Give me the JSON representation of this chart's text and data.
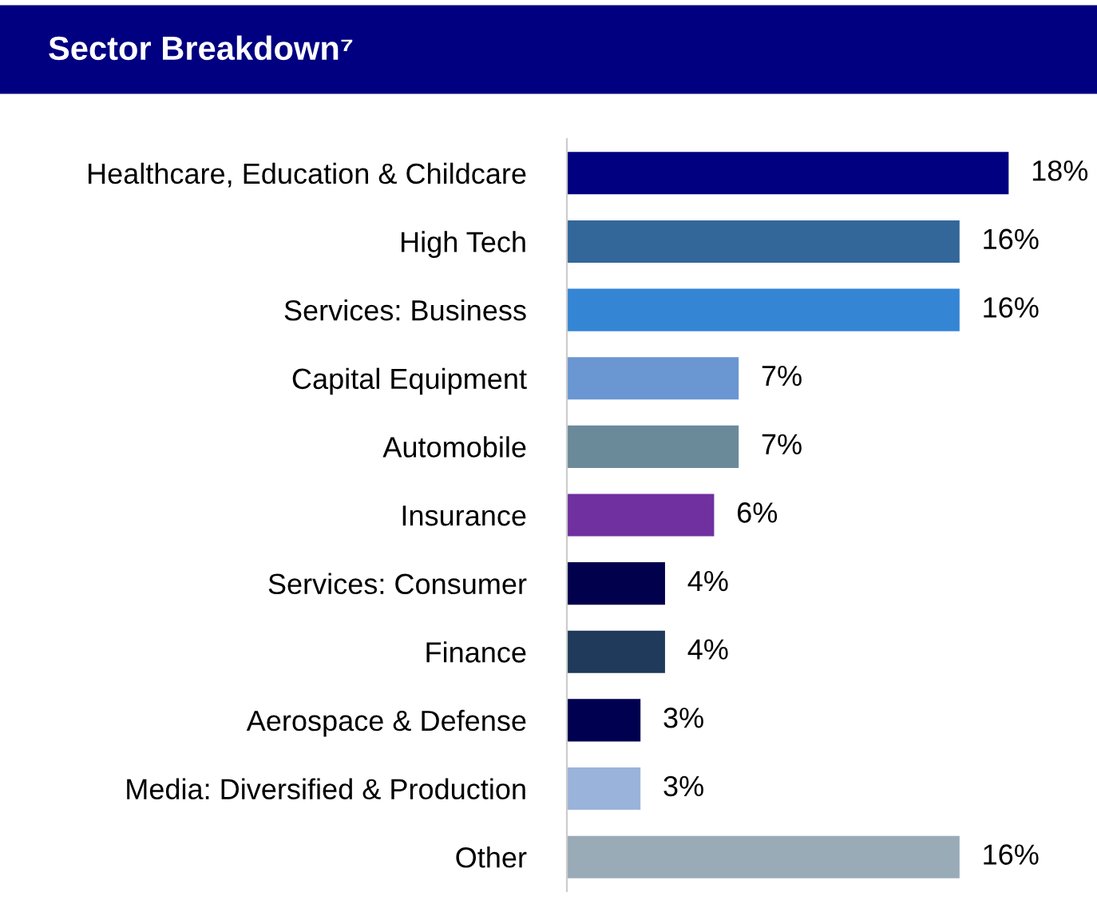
{
  "chart_data": {
    "type": "bar",
    "orientation": "horizontal",
    "title": "Sector Breakdown⁷",
    "categories": [
      "Healthcare, Education & Childcare",
      "High Tech",
      "Services: Business",
      "Capital Equipment",
      "Automobile",
      "Insurance",
      "Services: Consumer",
      "Finance",
      "Aerospace & Defense",
      "Media: Diversified & Production",
      "Other"
    ],
    "values": [
      18,
      16,
      16,
      7,
      7,
      6,
      4,
      4,
      3,
      3,
      16
    ],
    "value_labels": [
      "18%",
      "16%",
      "16%",
      "7%",
      "7%",
      "6%",
      "4%",
      "4%",
      "3%",
      "3%",
      "16%"
    ],
    "colors": [
      "#000080",
      "#336699",
      "#3585d5",
      "#6a96d2",
      "#6a8a9a",
      "#7030a0",
      "#00004d",
      "#1f3a5a",
      "#000050",
      "#9ab3da",
      "#9aabb8"
    ],
    "grid": false,
    "legend": false
  }
}
